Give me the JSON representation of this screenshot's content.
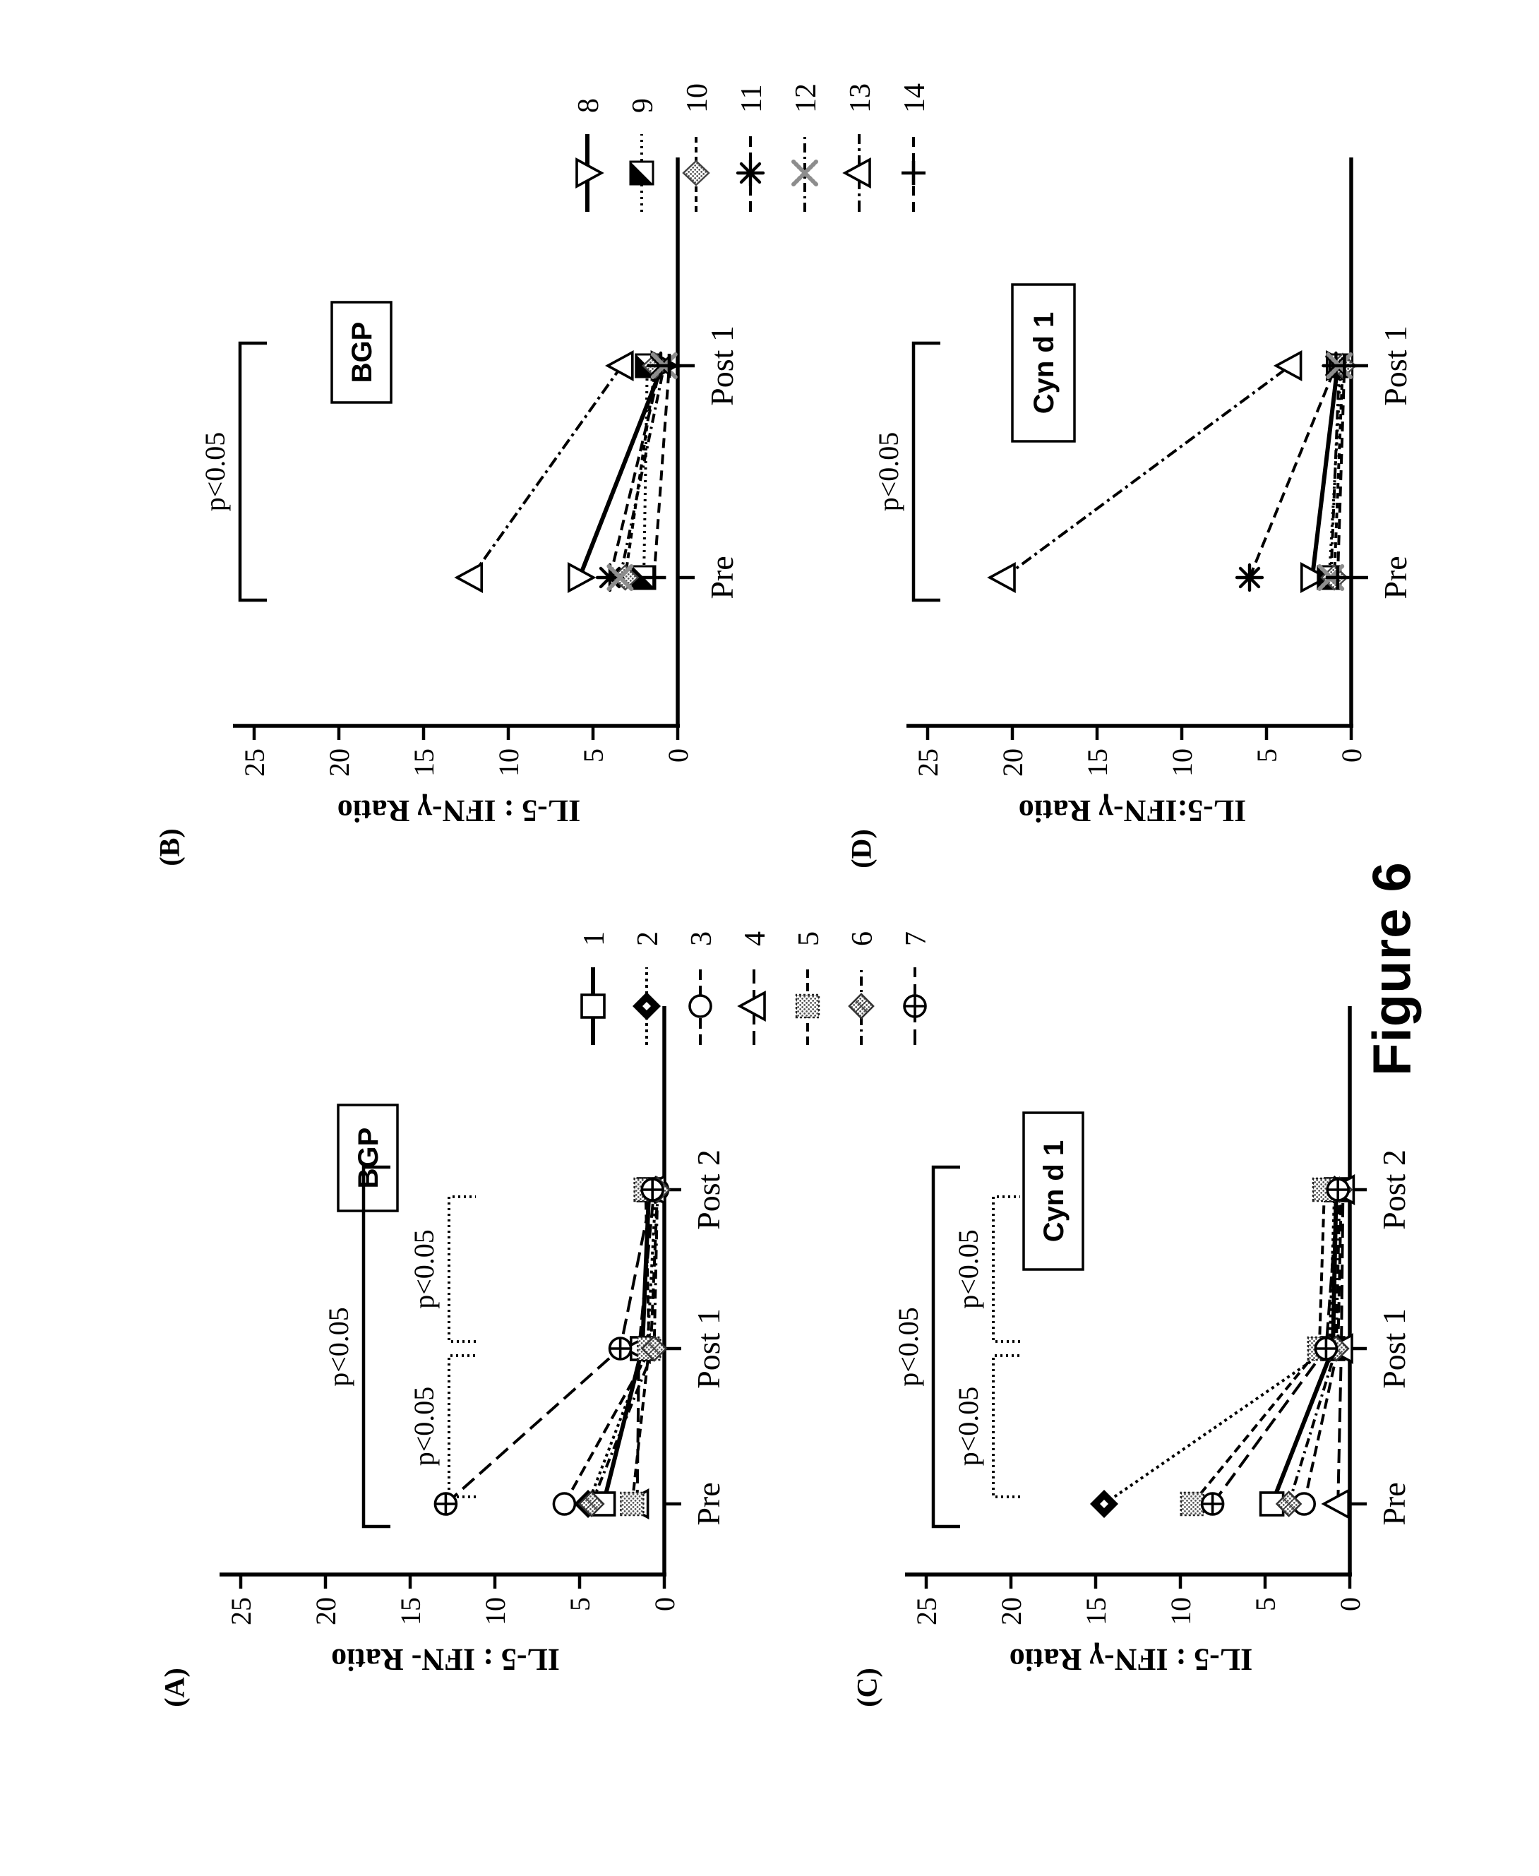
{
  "figure_label": "Figure 6",
  "panel_letters": {
    "a": "(A)",
    "b": "(B)",
    "c": "(C)",
    "d": "(D)"
  },
  "chart_data": {
    "type": "line",
    "ylim": [
      0,
      25
    ],
    "yticks": [
      0,
      5,
      10,
      15,
      20,
      25
    ],
    "legend_sets": [
      {
        "name": "subjects-1-7",
        "items": [
          {
            "id": "1",
            "label": "1",
            "marker": "open-square",
            "line": "solid"
          },
          {
            "id": "2",
            "label": "2",
            "marker": "filled-diamond",
            "line": "dotted"
          },
          {
            "id": "3",
            "label": "3",
            "marker": "open-circle",
            "line": "dashed"
          },
          {
            "id": "4",
            "label": "4",
            "marker": "open-triangle",
            "line": "longdash"
          },
          {
            "id": "5",
            "label": "5",
            "marker": "stipple-square",
            "line": "dash"
          },
          {
            "id": "6",
            "label": "6",
            "marker": "stipple-diamond",
            "line": "dashdot"
          },
          {
            "id": "7",
            "label": "7",
            "marker": "circle-plus",
            "line": "longdash2"
          }
        ]
      },
      {
        "name": "subjects-8-14",
        "items": [
          {
            "id": "8",
            "label": "8",
            "marker": "open-triangle-down",
            "line": "solid"
          },
          {
            "id": "9",
            "label": "9",
            "marker": "half-square",
            "line": "dotted2"
          },
          {
            "id": "10",
            "label": "10",
            "marker": "gray-diamond",
            "line": "dash2"
          },
          {
            "id": "11",
            "label": "11",
            "marker": "asterisk",
            "line": "dashed"
          },
          {
            "id": "12",
            "label": "12",
            "marker": "gray-x",
            "line": "dashdot"
          },
          {
            "id": "13",
            "label": "13",
            "marker": "open-triangle",
            "line": "dashdot2"
          },
          {
            "id": "14",
            "label": "14",
            "marker": "plus",
            "line": "dash3"
          }
        ]
      }
    ],
    "panels": [
      {
        "key": "A",
        "legend_set": "subjects-1-7",
        "group_label": "BGP",
        "y_label": "IL-5 : IFN-  Ratio",
        "categories": [
          "Pre",
          "Post 1",
          "Post 2"
        ],
        "series": [
          {
            "id": "1",
            "values": [
              3.6,
              1.3,
              0.9
            ]
          },
          {
            "id": "2",
            "values": [
              4.5,
              1.0,
              0.5
            ]
          },
          {
            "id": "3",
            "values": [
              5.9,
              0.8,
              0.4
            ]
          },
          {
            "id": "4",
            "values": [
              1.6,
              1.5,
              0.6
            ]
          },
          {
            "id": "5",
            "values": [
              1.9,
              0.9,
              1.1
            ]
          },
          {
            "id": "6",
            "values": [
              4.3,
              0.6,
              0.4
            ]
          },
          {
            "id": "7",
            "values": [
              12.9,
              2.6,
              0.7
            ]
          }
        ],
        "significance": [
          {
            "label": "p<0.05",
            "from": "Pre",
            "to": "Post 2",
            "style": "solid",
            "level": 294
          },
          {
            "label": "p<0.05",
            "from": "Pre",
            "to": "Post 1",
            "style": "dotted",
            "level": 415
          },
          {
            "label": "p<0.05",
            "from": "Post 1",
            "to": "Post 2",
            "style": "dotted",
            "level": 415
          }
        ]
      },
      {
        "key": "B",
        "legend_set": "subjects-8-14",
        "group_label": "BGP",
        "y_label": "IL-5 : IFN-γ Ratio",
        "categories": [
          "Pre",
          "Post 1"
        ],
        "series": [
          {
            "id": "8",
            "values": [
              5.8,
              0.9
            ]
          },
          {
            "id": "9",
            "values": [
              2.0,
              1.8
            ]
          },
          {
            "id": "10",
            "values": [
              3.1,
              1.3
            ]
          },
          {
            "id": "11",
            "values": [
              4.0,
              1.0
            ]
          },
          {
            "id": "12",
            "values": [
              3.4,
              0.8
            ]
          },
          {
            "id": "13",
            "values": [
              12.2,
              3.3
            ]
          },
          {
            "id": "14",
            "values": [
              1.4,
              0.5
            ]
          }
        ],
        "significance": [
          {
            "label": "p<0.05",
            "from": "Pre",
            "to": "Post 1",
            "style": "solid",
            "level": 100
          }
        ]
      },
      {
        "key": "C",
        "legend_set": "subjects-1-7",
        "group_label": "Cyn d 1",
        "y_label": "IL-5 : IFN-γ Ratio",
        "categories": [
          "Pre",
          "Post 1",
          "Post 2"
        ],
        "series": [
          {
            "id": "1",
            "values": [
              4.6,
              1.0,
              0.8
            ]
          },
          {
            "id": "2",
            "values": [
              14.5,
              1.2,
              0.9
            ]
          },
          {
            "id": "3",
            "values": [
              2.7,
              0.7,
              0.5
            ]
          },
          {
            "id": "4",
            "values": [
              0.7,
              0.5,
              0.4
            ]
          },
          {
            "id": "5",
            "values": [
              9.3,
              1.8,
              1.5
            ]
          },
          {
            "id": "6",
            "values": [
              3.6,
              0.8,
              0.6
            ]
          },
          {
            "id": "7",
            "values": [
              8.1,
              1.4,
              0.7
            ]
          }
        ],
        "significance": [
          {
            "label": "p<0.05",
            "from": "Pre",
            "to": "Post 2",
            "style": "solid",
            "level": 130
          },
          {
            "label": "p<0.05",
            "from": "Pre",
            "to": "Post 1",
            "style": "dotted",
            "level": 215
          },
          {
            "label": "p<0.05",
            "from": "Post 1",
            "to": "Post 2",
            "style": "dotted",
            "level": 215
          }
        ]
      },
      {
        "key": "D",
        "legend_set": "subjects-8-14",
        "group_label": "Cyn d 1",
        "y_label": "IL-5:IFN-γ Ratio",
        "categories": [
          "Pre",
          "Post 1"
        ],
        "series": [
          {
            "id": "8",
            "values": [
              2.3,
              0.8
            ]
          },
          {
            "id": "9",
            "values": [
              1.3,
              0.6
            ]
          },
          {
            "id": "10",
            "values": [
              1.0,
              0.5
            ]
          },
          {
            "id": "11",
            "values": [
              6.0,
              0.9
            ]
          },
          {
            "id": "12",
            "values": [
              1.2,
              0.7
            ]
          },
          {
            "id": "13",
            "values": [
              20.5,
              3.6
            ]
          },
          {
            "id": "14",
            "values": [
              0.8,
              0.4
            ]
          }
        ],
        "significance": [
          {
            "label": "p<0.05",
            "from": "Pre",
            "to": "Post 1",
            "style": "solid",
            "level": 100
          }
        ]
      }
    ]
  }
}
